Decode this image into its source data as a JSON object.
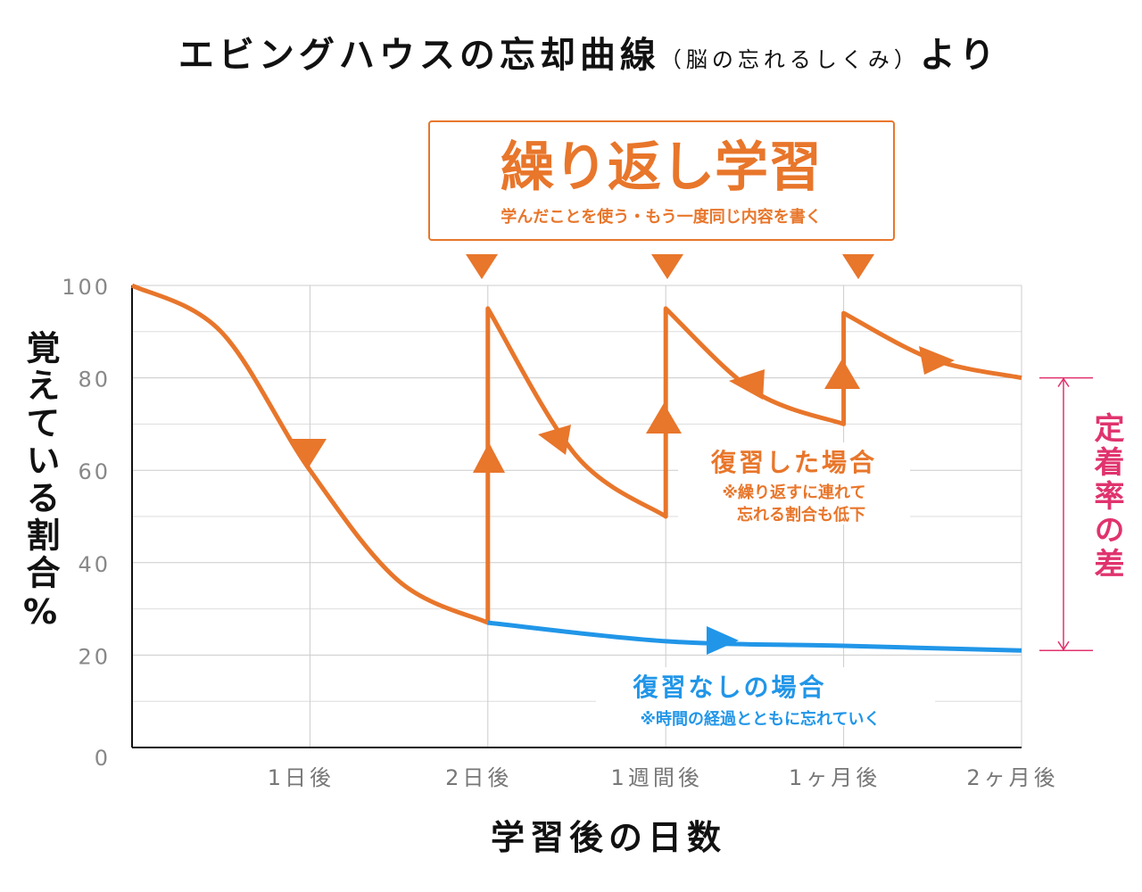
{
  "chart_data": {
    "type": "line",
    "title": "エビングハウスの忘却曲線",
    "title_note": "（脳の忘れるしくみ）",
    "title_suffix": "より",
    "box_title": "繰り返し学習",
    "box_subtitle": "学んだことを使う・もう一度同じ内容を書く",
    "y_label": "覚えている割合%",
    "x_label": "学習後の日数",
    "difference_label": "定着率の差",
    "xlim": [
      0,
      5
    ],
    "ylim": [
      0,
      100
    ],
    "xticks": [
      {
        "value": 1,
        "label": "1日後"
      },
      {
        "value": 2,
        "label": "2日後"
      },
      {
        "value": 3,
        "label": "1週間後"
      },
      {
        "value": 4,
        "label": "1ヶ月後"
      },
      {
        "value": 5,
        "label": "2ヶ月後"
      }
    ],
    "yticks": [
      0,
      20,
      40,
      60,
      80,
      100
    ],
    "minor_yticks": [
      10,
      30,
      50,
      70,
      90
    ],
    "grid": true,
    "series": [
      {
        "name": "復習した場合",
        "note": [
          "※繰り返すに連れて",
          "忘れる割合も低下"
        ],
        "color": "#e8762b",
        "x": [
          0,
          0.5,
          1,
          1.5,
          2,
          2,
          2.5,
          3,
          3,
          3.5,
          4,
          4,
          4.5,
          5
        ],
        "values": [
          100,
          90,
          60,
          36,
          27,
          95,
          63,
          50,
          95,
          77,
          70,
          94,
          84,
          80
        ]
      },
      {
        "name": "復習なしの場合",
        "note": [
          "※時間の経過とともに忘れていく"
        ],
        "color": "#2196e8",
        "x": [
          2,
          3,
          4,
          5
        ],
        "values": [
          27,
          23,
          22,
          21
        ]
      }
    ]
  }
}
